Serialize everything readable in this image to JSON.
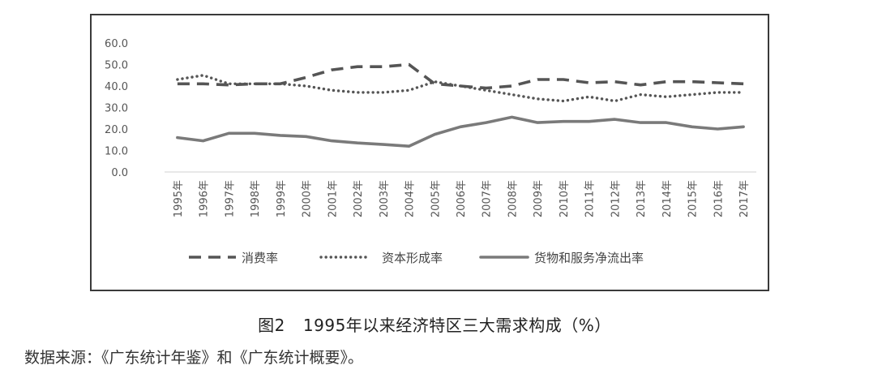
{
  "caption": {
    "label": "图2",
    "text": "1995年以来经济特区三大需求构成（%）"
  },
  "source": "数据来源：《广东统计年鉴》和《广东统计概要》。",
  "chart_data": {
    "type": "line",
    "title": "",
    "xlabel": "",
    "ylabel": "",
    "ylim": [
      0,
      60
    ],
    "yticks": [
      "0.0",
      "10.0",
      "20.0",
      "30.0",
      "40.0",
      "50.0",
      "60.0"
    ],
    "grid": false,
    "legend_position": "bottom",
    "categories": [
      "1995年",
      "1996年",
      "1997年",
      "1998年",
      "1999年",
      "2000年",
      "2001年",
      "2002年",
      "2003年",
      "2004年",
      "2005年",
      "2006年",
      "2007年",
      "2008年",
      "2009年",
      "2010年",
      "2011年",
      "2012年",
      "2013年",
      "2014年",
      "2015年",
      "2016年",
      "2017年"
    ],
    "series": [
      {
        "name": "消费率",
        "style": "dashed",
        "color": "#555555",
        "values": [
          41,
          41,
          40.5,
          41,
          41,
          44,
          47.5,
          49,
          49,
          50,
          41,
          40,
          39,
          40,
          43,
          43,
          41.5,
          42,
          40.5,
          42,
          42,
          41.5,
          41
        ]
      },
      {
        "name": "资本形成率",
        "style": "dotted",
        "color": "#555555",
        "values": [
          43,
          45,
          41,
          41,
          41,
          40,
          38,
          37,
          37,
          38,
          42,
          40,
          38,
          36,
          34,
          33,
          35,
          33,
          36,
          35,
          36,
          37,
          37
        ]
      },
      {
        "name": "货物和服务净流出率",
        "style": "solid",
        "color": "#7a7a7a",
        "values": [
          16,
          14.5,
          18,
          18,
          17,
          16.5,
          14.5,
          13.5,
          12.8,
          12,
          17.5,
          21,
          23,
          25.5,
          23,
          23.5,
          23.5,
          24.5,
          23,
          23,
          21,
          20,
          21
        ]
      }
    ]
  }
}
